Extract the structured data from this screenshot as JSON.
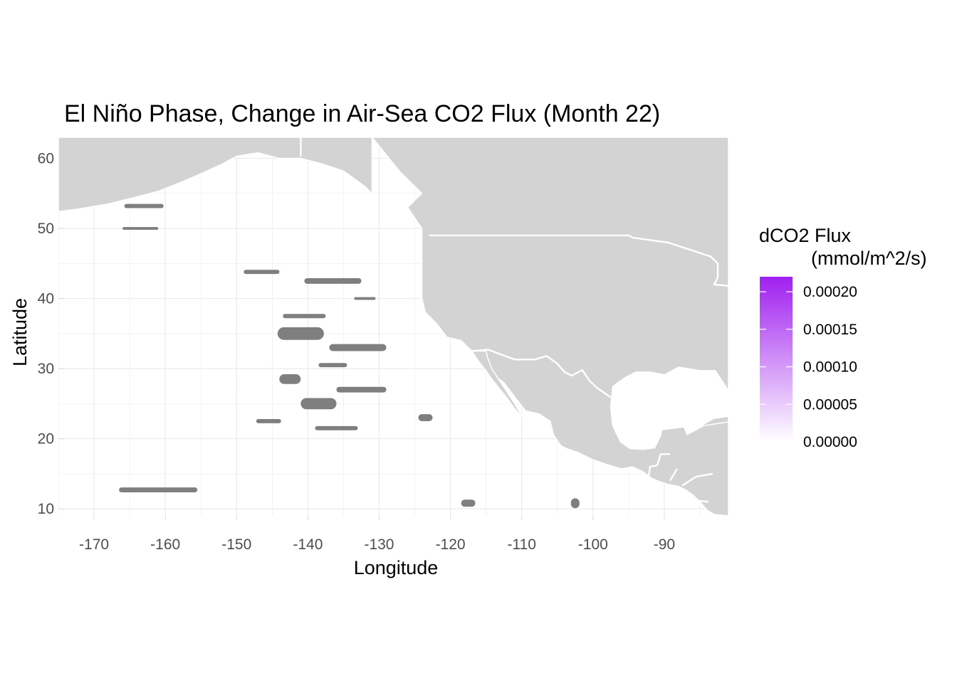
{
  "chart_data": {
    "type": "map",
    "title": "El Niño Phase, Change in Air-Sea CO2 Flux (Month 22)",
    "xlabel": "Longitude",
    "ylabel": "Latitude",
    "xlim": [
      -175,
      -81
    ],
    "ylim": [
      9,
      63
    ],
    "x_ticks": [
      -170,
      -160,
      -150,
      -140,
      -130,
      -120,
      -110,
      -100,
      -90
    ],
    "y_ticks": [
      10,
      20,
      30,
      40,
      50,
      60
    ],
    "grid": true,
    "legend": {
      "title_line1": "dCO2 Flux",
      "title_line2": "(mmol/m^2/s)",
      "placement": "right",
      "range": [
        0,
        0.00022
      ],
      "ticks": [
        0,
        5e-05,
        0.0001,
        0.00015,
        0.0002
      ],
      "tick_labels": [
        "0.00000",
        "0.00005",
        "0.00010",
        "0.00015",
        "0.00020"
      ],
      "color_low": "#ffffff",
      "color_high": "#a020f0"
    },
    "colors": {
      "land": "#d3d3d3",
      "land_border": "#ffffff",
      "ocean": "#ffffff",
      "grid": "#ebebeb",
      "flux_na": "#7f7f7f"
    },
    "flux_patches": [
      {
        "lon": -141.0,
        "lat": 35.0,
        "w": 6.5,
        "h": 1.8,
        "v": 0.0
      },
      {
        "lon": -133.0,
        "lat": 33.0,
        "w": 8.0,
        "h": 1.0,
        "v": 0.0
      },
      {
        "lon": -138.5,
        "lat": 25.0,
        "w": 5.0,
        "h": 1.6,
        "v": 0.0
      },
      {
        "lon": -132.5,
        "lat": 27.0,
        "w": 7.0,
        "h": 0.8,
        "v": 0.0
      },
      {
        "lon": -142.5,
        "lat": 28.5,
        "w": 3.0,
        "h": 1.4,
        "v": 0.0
      },
      {
        "lon": -136.5,
        "lat": 42.5,
        "w": 8.0,
        "h": 0.8,
        "v": 0.0
      },
      {
        "lon": -123.5,
        "lat": 23.0,
        "w": 2.0,
        "h": 1.0,
        "v": 0.0
      },
      {
        "lon": -161.0,
        "lat": 12.7,
        "w": 11.0,
        "h": 0.7,
        "v": 0.0
      },
      {
        "lon": -163.0,
        "lat": 53.2,
        "w": 5.5,
        "h": 0.6,
        "v": 0.0
      },
      {
        "lon": -102.5,
        "lat": 10.8,
        "w": 1.2,
        "h": 1.4,
        "v": 0.0
      },
      {
        "lon": -117.5,
        "lat": 10.8,
        "w": 2.0,
        "h": 1.0,
        "v": 0.0
      },
      {
        "lon": -146.5,
        "lat": 43.8,
        "w": 5.0,
        "h": 0.6,
        "v": 0.0
      },
      {
        "lon": -140.5,
        "lat": 37.5,
        "w": 6.0,
        "h": 0.6,
        "v": 0.0
      },
      {
        "lon": -136.0,
        "lat": 21.5,
        "w": 6.0,
        "h": 0.6,
        "v": 0.0
      },
      {
        "lon": -145.5,
        "lat": 22.5,
        "w": 3.5,
        "h": 0.6,
        "v": 0.0
      },
      {
        "lon": -136.5,
        "lat": 30.5,
        "w": 4.0,
        "h": 0.6,
        "v": 0.0
      },
      {
        "lon": -163.5,
        "lat": 50.0,
        "w": 5.0,
        "h": 0.4,
        "v": 0.0
      },
      {
        "lon": -132.0,
        "lat": 40.0,
        "w": 3.0,
        "h": 0.4,
        "v": 0.0
      }
    ],
    "land_polygons": [
      {
        "name": "north-america",
        "points": [
          [
            -131,
            63
          ],
          [
            -127,
            58
          ],
          [
            -124,
            55
          ],
          [
            -126,
            53
          ],
          [
            -124,
            50
          ],
          [
            -124,
            48
          ],
          [
            -124,
            46
          ],
          [
            -124,
            43
          ],
          [
            -124,
            40
          ],
          [
            -123.5,
            38
          ],
          [
            -122,
            36.5
          ],
          [
            -120.5,
            34.5
          ],
          [
            -118.5,
            34
          ],
          [
            -117,
            32.5
          ],
          [
            -115.5,
            31
          ],
          [
            -114.5,
            29.5
          ],
          [
            -112.5,
            28
          ],
          [
            -111,
            26
          ],
          [
            -109.5,
            24
          ],
          [
            -107.5,
            23.5
          ],
          [
            -106,
            22.5
          ],
          [
            -105.5,
            20.5
          ],
          [
            -104.5,
            19
          ],
          [
            -103.5,
            18.5
          ],
          [
            -102,
            18
          ],
          [
            -100,
            17
          ],
          [
            -98,
            16.3
          ],
          [
            -96,
            15.7
          ],
          [
            -94.5,
            16
          ],
          [
            -93,
            15.3
          ],
          [
            -92,
            14.5
          ],
          [
            -91,
            14
          ],
          [
            -89.5,
            13.5
          ],
          [
            -88,
            13.2
          ],
          [
            -87,
            12.7
          ],
          [
            -86,
            12
          ],
          [
            -85,
            11
          ],
          [
            -84,
            9.8
          ],
          [
            -83,
            9.2
          ],
          [
            -81,
            9
          ],
          [
            -81,
            63
          ]
        ]
      },
      {
        "name": "baja-california",
        "points": [
          [
            -117,
            32.5
          ],
          [
            -116,
            31
          ],
          [
            -115,
            29.7
          ],
          [
            -114.2,
            28.5
          ],
          [
            -113,
            27
          ],
          [
            -112,
            25.7
          ],
          [
            -111,
            24.3
          ],
          [
            -109.8,
            23
          ],
          [
            -110.4,
            24
          ],
          [
            -111.5,
            25.8
          ],
          [
            -112.8,
            27.8
          ],
          [
            -114.2,
            30
          ],
          [
            -114.8,
            31.6
          ],
          [
            -115,
            32.5
          ]
        ]
      },
      {
        "name": "gulf-of-mexico",
        "color": "ocean",
        "points": [
          [
            -97.3,
            27.5
          ],
          [
            -97.6,
            24.5
          ],
          [
            -97.3,
            21.8
          ],
          [
            -96.2,
            19.5
          ],
          [
            -94.8,
            18.5
          ],
          [
            -93,
            18.4
          ],
          [
            -91.3,
            18.6
          ],
          [
            -90.4,
            20.5
          ],
          [
            -90.3,
            21.2
          ],
          [
            -87.3,
            21.6
          ],
          [
            -86.8,
            20.5
          ],
          [
            -83.5,
            22.3
          ],
          [
            -81,
            23
          ],
          [
            -81,
            27
          ],
          [
            -82.8,
            29.8
          ],
          [
            -85,
            29.8
          ],
          [
            -88,
            30.3
          ],
          [
            -90,
            29.2
          ],
          [
            -92,
            29.6
          ],
          [
            -94,
            29.6
          ],
          [
            -95.5,
            28.8
          ]
        ]
      },
      {
        "name": "cuba",
        "points": [
          [
            -85,
            21.8
          ],
          [
            -83,
            22.9
          ],
          [
            -81,
            23.2
          ],
          [
            -81,
            22.4
          ],
          [
            -83.5,
            22
          ]
        ]
      },
      {
        "name": "aleutians",
        "points": [
          [
            -175,
            52.4
          ],
          [
            -172,
            52.8
          ],
          [
            -168,
            53.5
          ],
          [
            -164,
            54.5
          ],
          [
            -161,
            55.3
          ],
          [
            -158,
            56.5
          ],
          [
            -155,
            57.8
          ],
          [
            -152,
            59.2
          ],
          [
            -150,
            60.3
          ],
          [
            -147,
            60.8
          ],
          [
            -144,
            60
          ],
          [
            -141,
            60
          ],
          [
            -138,
            59.2
          ],
          [
            -135,
            58.2
          ],
          [
            -132,
            56
          ],
          [
            -131,
            55
          ],
          [
            -131,
            63
          ],
          [
            -175,
            63
          ]
        ]
      }
    ],
    "border_lines": [
      {
        "name": "us-canada",
        "points": [
          [
            -123,
            49
          ],
          [
            -118,
            49
          ],
          [
            -110,
            49
          ],
          [
            -100,
            49
          ],
          [
            -95,
            49
          ],
          [
            -94.5,
            48.7
          ],
          [
            -91,
            48.2
          ],
          [
            -89.5,
            48
          ],
          [
            -88,
            47.5
          ],
          [
            -85,
            46.5
          ],
          [
            -83.5,
            46
          ],
          [
            -82.5,
            45
          ],
          [
            -82.5,
            43
          ],
          [
            -83,
            42
          ],
          [
            -81,
            41.8
          ]
        ]
      },
      {
        "name": "us-mexico",
        "points": [
          [
            -117.1,
            32.5
          ],
          [
            -114.7,
            32.7
          ],
          [
            -111,
            31.3
          ],
          [
            -108.2,
            31.3
          ],
          [
            -106.5,
            31.8
          ],
          [
            -105,
            30.7
          ],
          [
            -104,
            29.5
          ],
          [
            -103,
            29
          ],
          [
            -101.5,
            29.8
          ],
          [
            -100.5,
            28.3
          ],
          [
            -99.5,
            27.3
          ],
          [
            -97.5,
            25.9
          ]
        ]
      },
      {
        "name": "alaska-canada",
        "points": [
          [
            -141,
            60.3
          ],
          [
            -141,
            63
          ]
        ]
      },
      {
        "name": "guatemala-mexico",
        "points": [
          [
            -92.2,
            14.5
          ],
          [
            -92,
            16
          ],
          [
            -91,
            16.2
          ],
          [
            -90.5,
            17.8
          ],
          [
            -89.2,
            17.8
          ]
        ]
      },
      {
        "name": "central-america-1",
        "points": [
          [
            -89.2,
            14
          ],
          [
            -88.2,
            15.7
          ]
        ]
      },
      {
        "name": "central-america-2",
        "points": [
          [
            -87.5,
            13.3
          ],
          [
            -85.5,
            14.6
          ],
          [
            -83.2,
            15
          ]
        ]
      },
      {
        "name": "central-america-3",
        "points": [
          [
            -85.7,
            11.2
          ],
          [
            -83.8,
            11
          ]
        ]
      }
    ]
  }
}
